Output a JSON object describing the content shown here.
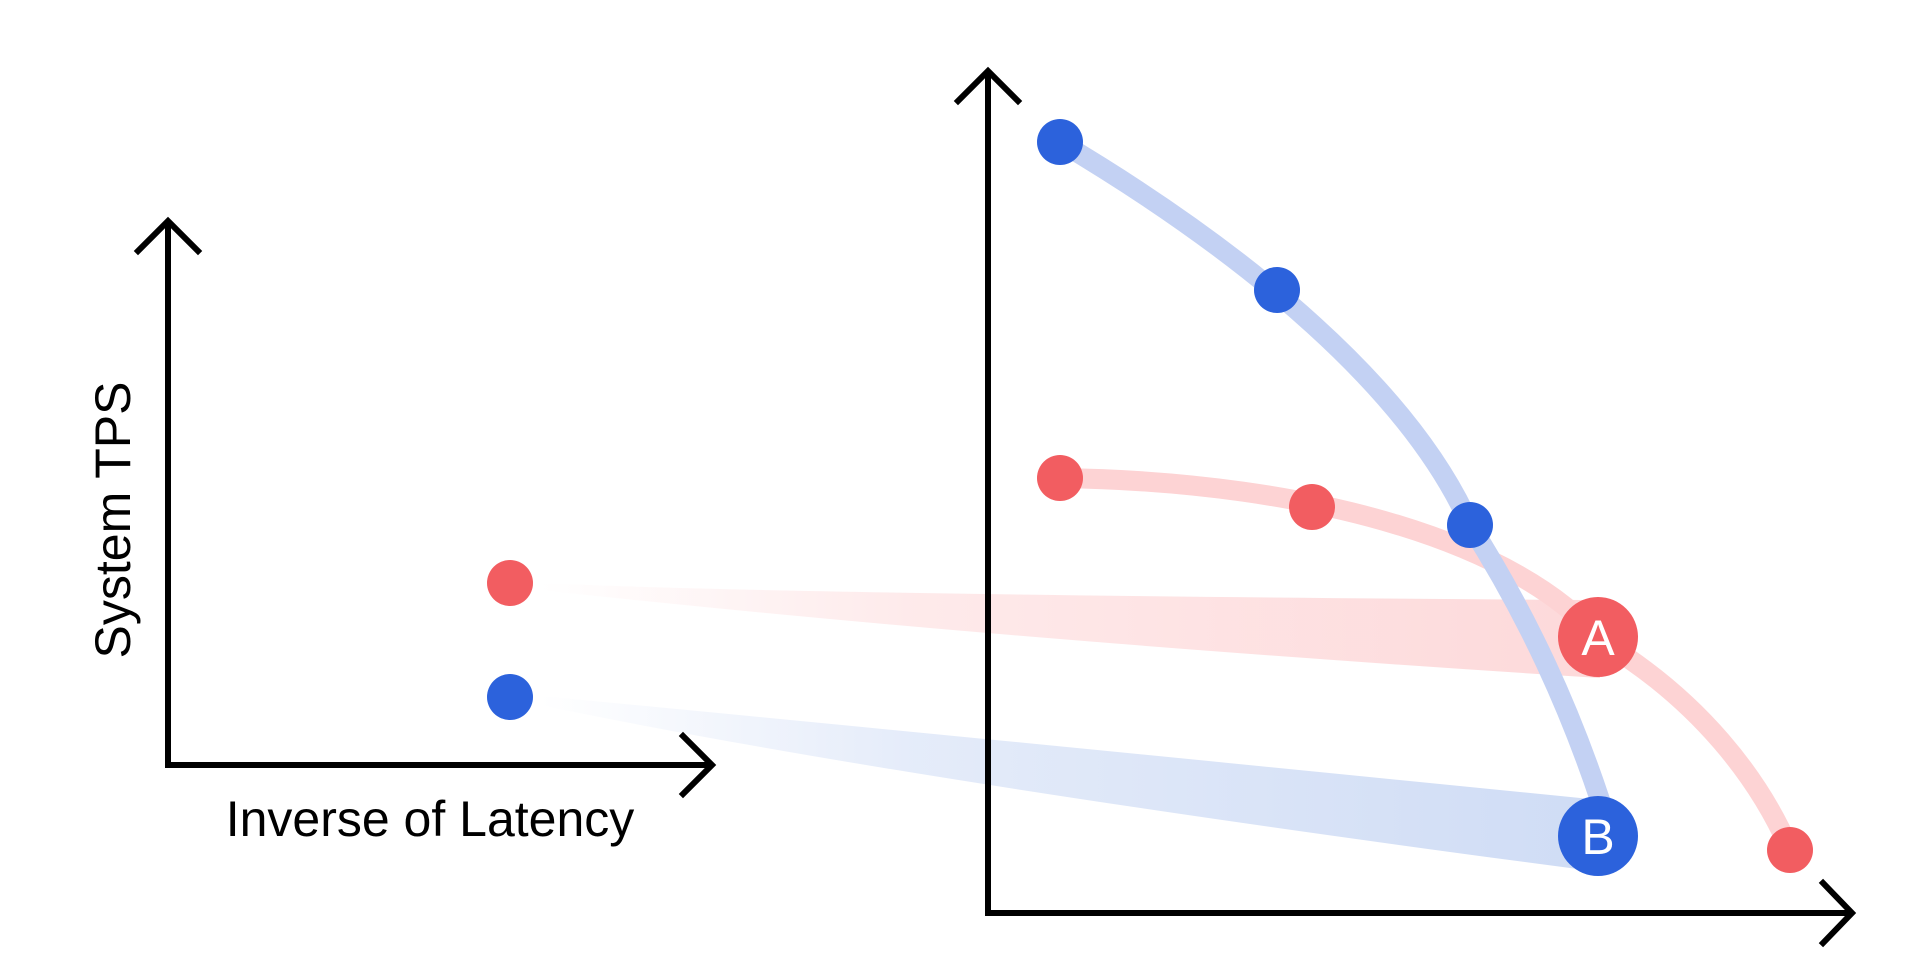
{
  "labels": {
    "y_axis": "System TPS",
    "x_axis": "Inverse of Latency",
    "point_a": "A",
    "point_b": "B"
  },
  "colors": {
    "axis": "#000000",
    "red_point": "#f25d61",
    "blue_point": "#2c62dc",
    "red_curve": "#fdd3d4",
    "blue_curve": "#c3d1f3",
    "red_band": "#fdd9da",
    "blue_band": "#cfdcf5",
    "background": "#ffffff"
  }
}
